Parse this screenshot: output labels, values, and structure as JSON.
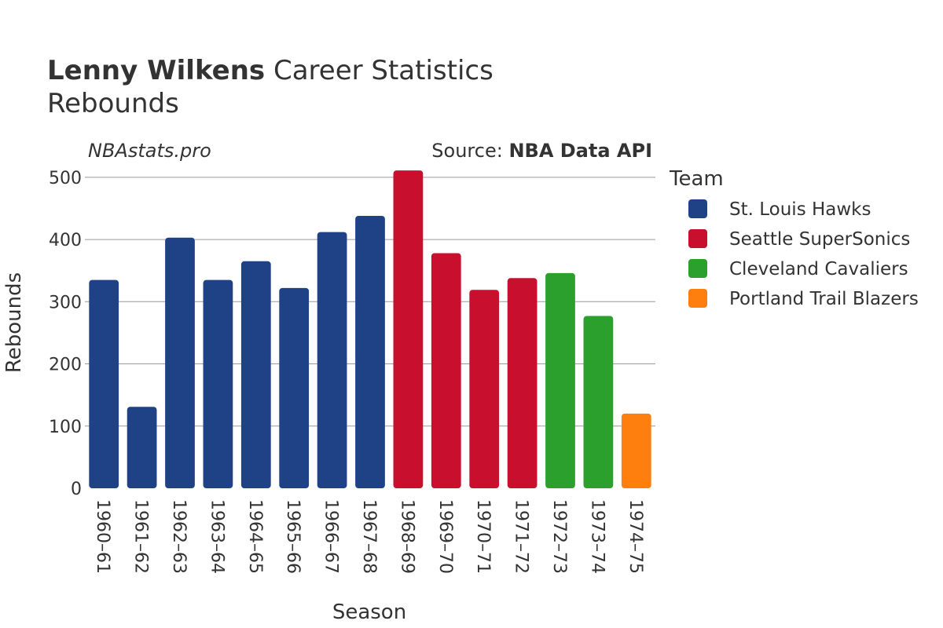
{
  "header": {
    "title_bold": "Lenny Wilkens",
    "title_rest": "Career Statistics",
    "subtitle": "Rebounds"
  },
  "site_label": "NBAstats.pro",
  "source": {
    "prefix": "Source: ",
    "name": "NBA Data API"
  },
  "chart_data": {
    "type": "bar",
    "xlabel": "Season",
    "ylabel": "Rebounds",
    "ylim": [
      0,
      520
    ],
    "yticks": [
      0,
      100,
      200,
      300,
      400,
      500
    ],
    "grid": true,
    "legend_title": "Team",
    "legend_position": "right",
    "series": [
      {
        "name": "St. Louis Hawks",
        "color": "#1f4286"
      },
      {
        "name": "Seattle SuperSonics",
        "color": "#c8102e"
      },
      {
        "name": "Cleveland Cavaliers",
        "color": "#2ca02c"
      },
      {
        "name": "Portland Trail Blazers",
        "color": "#ff7f0e"
      }
    ],
    "bars": [
      {
        "season": "1960–61",
        "value": 335,
        "team": 0
      },
      {
        "season": "1961–62",
        "value": 131,
        "team": 0
      },
      {
        "season": "1962–63",
        "value": 403,
        "team": 0
      },
      {
        "season": "1963–64",
        "value": 335,
        "team": 0
      },
      {
        "season": "1964–65",
        "value": 365,
        "team": 0
      },
      {
        "season": "1965–66",
        "value": 322,
        "team": 0
      },
      {
        "season": "1966–67",
        "value": 412,
        "team": 0
      },
      {
        "season": "1967–68",
        "value": 438,
        "team": 0
      },
      {
        "season": "1968–69",
        "value": 511,
        "team": 1
      },
      {
        "season": "1969–70",
        "value": 378,
        "team": 1
      },
      {
        "season": "1970–71",
        "value": 319,
        "team": 1
      },
      {
        "season": "1971–72",
        "value": 338,
        "team": 1
      },
      {
        "season": "1972–73",
        "value": 346,
        "team": 2
      },
      {
        "season": "1973–74",
        "value": 277,
        "team": 2
      },
      {
        "season": "1974–75",
        "value": 120,
        "team": 3
      }
    ]
  }
}
